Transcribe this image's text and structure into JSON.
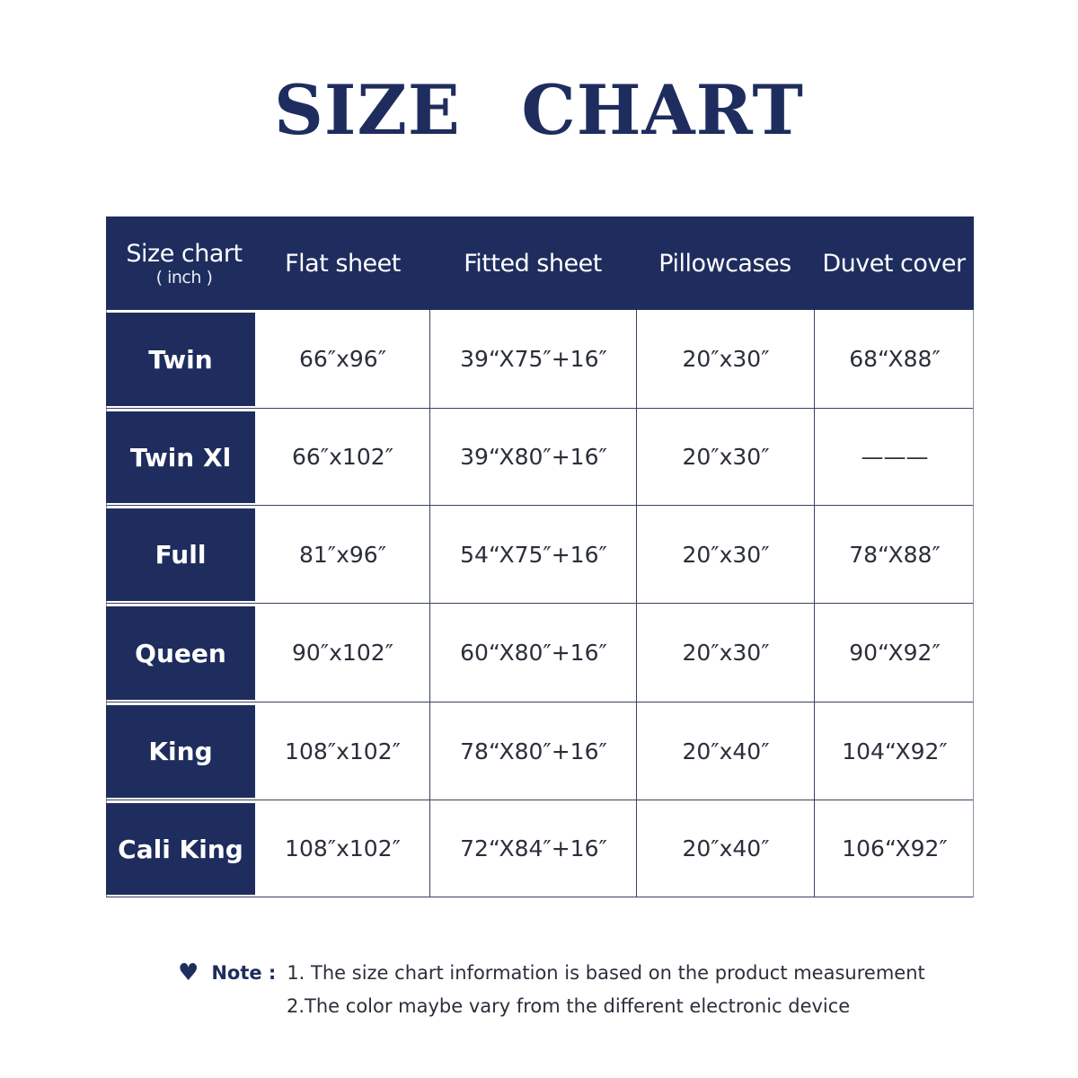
{
  "title": "SIZE CHART",
  "colors": {
    "navy": "#1e2d5e"
  },
  "table": {
    "headers": [
      "Size chart",
      "Flat sheet",
      "Fitted sheet",
      "Pillowcases",
      "Duvet cover"
    ],
    "header_unit": "( inch )",
    "rows": [
      {
        "size": "Twin",
        "values": [
          "66″x96″",
          "39“X75″+16″",
          "20″x30″",
          "68“X88″"
        ]
      },
      {
        "size": "Twin Xl",
        "values": [
          "66″x102″",
          "39“X80″+16″",
          "20″x30″",
          "———"
        ]
      },
      {
        "size": "Full",
        "values": [
          "81″x96″",
          "54“X75″+16″",
          "20″x30″",
          "78“X88″"
        ]
      },
      {
        "size": "Queen",
        "values": [
          "90″x102″",
          "60“X80″+16″",
          "20″x30″",
          "90“X92″"
        ]
      },
      {
        "size": "King",
        "values": [
          "108″x102″",
          "78“X80″+16″",
          "20″x40″",
          "104“X92″"
        ]
      },
      {
        "size": "Cali King",
        "values": [
          "108″x102″",
          "72“X84″+16″",
          "20″x40″",
          "106“X92″"
        ]
      }
    ]
  },
  "note": {
    "icon": "heart-icon",
    "label": "Note :",
    "lines": [
      "1. The size chart information is based on the product measurement",
      "2.The color maybe vary from the different electronic device"
    ]
  }
}
